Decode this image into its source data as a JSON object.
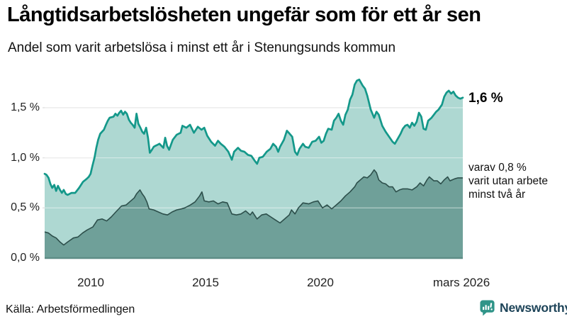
{
  "header": {
    "title": "Långtidsarbetslösheten ungefär som för ett år sen",
    "subtitle": "Andel som varit arbetslösa i minst ett år i Stenungsunds kommun"
  },
  "annotations": {
    "total_label": "1,6 %",
    "subset_line1": "varav 0,8 %",
    "subset_line2": "varit utan arbete",
    "subset_line3": "minst två år"
  },
  "footer": {
    "source": "Källa: Arbetsförmedlingen",
    "brand": "Newsworthy",
    "brand_logo_icon": "speech-bubble-bar-chart-icon"
  },
  "colors": {
    "line_total": "#14988a",
    "fill_total": "#aed8d2",
    "line_subset": "#2d4f4b",
    "fill_subset": "#6fa099",
    "baseline": "#5e8d87",
    "gridline": "#dfdfdf",
    "brand_teal": "#2f9488",
    "brand_navy": "#1e4459"
  },
  "chart_data": {
    "type": "area",
    "title": "Långtidsarbetslösheten ungefär som för ett år sen",
    "subtitle": "Andel som varit arbetslösa i minst ett år i Stenungsunds kommun",
    "xlabel": "",
    "ylabel": "",
    "xlim": [
      2008.0,
      2026.21
    ],
    "ylim": [
      0,
      1.8
    ],
    "grid": true,
    "legend_position": "none",
    "x_ticks": [
      {
        "label": "2010",
        "value": 2010
      },
      {
        "label": "2015",
        "value": 2015
      },
      {
        "label": "2020",
        "value": 2020
      },
      {
        "label": "mars 2026",
        "value": 2026.21
      }
    ],
    "y_ticks": [
      {
        "label": "0,0 %",
        "value": 0
      },
      {
        "label": "0,5 %",
        "value": 0.5
      },
      {
        "label": "1,0 %",
        "value": 1.0
      },
      {
        "label": "1,5 %",
        "value": 1.5
      }
    ],
    "series": [
      {
        "name": "Arbetslösa minst ett år",
        "latest_label": "1,6 %",
        "latest_value": 1.6,
        "color": "#14988a",
        "fill": "#aed8d2",
        "points": [
          [
            2008.0,
            0.84
          ],
          [
            2008.08,
            0.83
          ],
          [
            2008.17,
            0.8
          ],
          [
            2008.25,
            0.74
          ],
          [
            2008.33,
            0.7
          ],
          [
            2008.42,
            0.73
          ],
          [
            2008.5,
            0.67
          ],
          [
            2008.58,
            0.72
          ],
          [
            2008.67,
            0.68
          ],
          [
            2008.75,
            0.65
          ],
          [
            2008.83,
            0.68
          ],
          [
            2008.92,
            0.64
          ],
          [
            2009.0,
            0.63
          ],
          [
            2009.17,
            0.65
          ],
          [
            2009.33,
            0.65
          ],
          [
            2009.5,
            0.7
          ],
          [
            2009.67,
            0.76
          ],
          [
            2009.83,
            0.79
          ],
          [
            2009.92,
            0.81
          ],
          [
            2010.0,
            0.84
          ],
          [
            2010.08,
            0.92
          ],
          [
            2010.17,
            1.0
          ],
          [
            2010.25,
            1.1
          ],
          [
            2010.33,
            1.18
          ],
          [
            2010.42,
            1.24
          ],
          [
            2010.5,
            1.26
          ],
          [
            2010.58,
            1.28
          ],
          [
            2010.67,
            1.33
          ],
          [
            2010.75,
            1.37
          ],
          [
            2010.83,
            1.4
          ],
          [
            2011.0,
            1.41
          ],
          [
            2011.08,
            1.44
          ],
          [
            2011.17,
            1.42
          ],
          [
            2011.25,
            1.45
          ],
          [
            2011.33,
            1.47
          ],
          [
            2011.42,
            1.43
          ],
          [
            2011.5,
            1.46
          ],
          [
            2011.58,
            1.44
          ],
          [
            2011.67,
            1.38
          ],
          [
            2011.75,
            1.35
          ],
          [
            2011.83,
            1.33
          ],
          [
            2011.92,
            1.3
          ],
          [
            2012.0,
            1.44
          ],
          [
            2012.08,
            1.34
          ],
          [
            2012.17,
            1.3
          ],
          [
            2012.25,
            1.26
          ],
          [
            2012.33,
            1.24
          ],
          [
            2012.42,
            1.3
          ],
          [
            2012.5,
            1.2
          ],
          [
            2012.58,
            1.05
          ],
          [
            2012.67,
            1.08
          ],
          [
            2012.75,
            1.11
          ],
          [
            2012.83,
            1.12
          ],
          [
            2012.92,
            1.13
          ],
          [
            2013.0,
            1.14
          ],
          [
            2013.08,
            1.12
          ],
          [
            2013.17,
            1.1
          ],
          [
            2013.25,
            1.2
          ],
          [
            2013.33,
            1.12
          ],
          [
            2013.42,
            1.08
          ],
          [
            2013.58,
            1.18
          ],
          [
            2013.75,
            1.23
          ],
          [
            2013.92,
            1.25
          ],
          [
            2014.0,
            1.32
          ],
          [
            2014.17,
            1.3
          ],
          [
            2014.33,
            1.33
          ],
          [
            2014.5,
            1.25
          ],
          [
            2014.67,
            1.31
          ],
          [
            2014.83,
            1.28
          ],
          [
            2014.95,
            1.3
          ],
          [
            2015.08,
            1.22
          ],
          [
            2015.25,
            1.16
          ],
          [
            2015.42,
            1.12
          ],
          [
            2015.55,
            1.17
          ],
          [
            2015.67,
            1.14
          ],
          [
            2015.83,
            1.11
          ],
          [
            2016.0,
            1.06
          ],
          [
            2016.15,
            0.98
          ],
          [
            2016.25,
            1.06
          ],
          [
            2016.42,
            1.1
          ],
          [
            2016.55,
            1.07
          ],
          [
            2016.7,
            1.06
          ],
          [
            2016.85,
            1.03
          ],
          [
            2017.0,
            1.02
          ],
          [
            2017.15,
            0.97
          ],
          [
            2017.25,
            0.94
          ],
          [
            2017.35,
            1.0
          ],
          [
            2017.5,
            1.01
          ],
          [
            2017.67,
            1.06
          ],
          [
            2017.83,
            1.09
          ],
          [
            2017.95,
            1.14
          ],
          [
            2018.08,
            1.11
          ],
          [
            2018.17,
            1.06
          ],
          [
            2018.25,
            1.11
          ],
          [
            2018.42,
            1.18
          ],
          [
            2018.55,
            1.27
          ],
          [
            2018.67,
            1.24
          ],
          [
            2018.78,
            1.21
          ],
          [
            2018.9,
            1.06
          ],
          [
            2019.0,
            1.03
          ],
          [
            2019.1,
            1.09
          ],
          [
            2019.25,
            1.14
          ],
          [
            2019.35,
            1.11
          ],
          [
            2019.5,
            1.1
          ],
          [
            2019.65,
            1.16
          ],
          [
            2019.8,
            1.17
          ],
          [
            2019.95,
            1.21
          ],
          [
            2020.05,
            1.15
          ],
          [
            2020.15,
            1.17
          ],
          [
            2020.25,
            1.24
          ],
          [
            2020.35,
            1.29
          ],
          [
            2020.5,
            1.28
          ],
          [
            2020.6,
            1.37
          ],
          [
            2020.7,
            1.4
          ],
          [
            2020.8,
            1.44
          ],
          [
            2020.9,
            1.37
          ],
          [
            2021.0,
            1.33
          ],
          [
            2021.1,
            1.43
          ],
          [
            2021.2,
            1.48
          ],
          [
            2021.3,
            1.58
          ],
          [
            2021.4,
            1.63
          ],
          [
            2021.5,
            1.73
          ],
          [
            2021.6,
            1.77
          ],
          [
            2021.7,
            1.78
          ],
          [
            2021.85,
            1.72
          ],
          [
            2021.95,
            1.69
          ],
          [
            2022.05,
            1.62
          ],
          [
            2022.2,
            1.48
          ],
          [
            2022.35,
            1.4
          ],
          [
            2022.45,
            1.46
          ],
          [
            2022.55,
            1.43
          ],
          [
            2022.7,
            1.32
          ],
          [
            2022.85,
            1.26
          ],
          [
            2023.0,
            1.21
          ],
          [
            2023.15,
            1.16
          ],
          [
            2023.25,
            1.14
          ],
          [
            2023.4,
            1.2
          ],
          [
            2023.5,
            1.24
          ],
          [
            2023.6,
            1.29
          ],
          [
            2023.7,
            1.32
          ],
          [
            2023.8,
            1.33
          ],
          [
            2023.9,
            1.3
          ],
          [
            2024.0,
            1.35
          ],
          [
            2024.1,
            1.32
          ],
          [
            2024.2,
            1.36
          ],
          [
            2024.3,
            1.45
          ],
          [
            2024.4,
            1.41
          ],
          [
            2024.5,
            1.29
          ],
          [
            2024.6,
            1.28
          ],
          [
            2024.7,
            1.37
          ],
          [
            2024.85,
            1.4
          ],
          [
            2024.95,
            1.43
          ],
          [
            2025.05,
            1.46
          ],
          [
            2025.15,
            1.48
          ],
          [
            2025.3,
            1.53
          ],
          [
            2025.4,
            1.61
          ],
          [
            2025.5,
            1.65
          ],
          [
            2025.6,
            1.67
          ],
          [
            2025.7,
            1.64
          ],
          [
            2025.8,
            1.66
          ],
          [
            2025.9,
            1.62
          ],
          [
            2026.0,
            1.6
          ],
          [
            2026.1,
            1.59
          ],
          [
            2026.21,
            1.6
          ]
        ]
      },
      {
        "name": "Utan arbete minst två år",
        "latest_label": "0,8 %",
        "latest_value": 0.8,
        "color": "#2d4f4b",
        "fill": "#6fa099",
        "points": [
          [
            2008.0,
            0.26
          ],
          [
            2008.17,
            0.25
          ],
          [
            2008.33,
            0.22
          ],
          [
            2008.5,
            0.2
          ],
          [
            2008.67,
            0.16
          ],
          [
            2008.83,
            0.13
          ],
          [
            2009.0,
            0.16
          ],
          [
            2009.25,
            0.2
          ],
          [
            2009.45,
            0.21
          ],
          [
            2009.65,
            0.25
          ],
          [
            2009.85,
            0.28
          ],
          [
            2010.1,
            0.31
          ],
          [
            2010.3,
            0.38
          ],
          [
            2010.5,
            0.39
          ],
          [
            2010.7,
            0.37
          ],
          [
            2010.9,
            0.41
          ],
          [
            2011.1,
            0.46
          ],
          [
            2011.35,
            0.52
          ],
          [
            2011.55,
            0.53
          ],
          [
            2011.7,
            0.56
          ],
          [
            2011.9,
            0.6
          ],
          [
            2012.0,
            0.64
          ],
          [
            2012.15,
            0.68
          ],
          [
            2012.25,
            0.64
          ],
          [
            2012.35,
            0.61
          ],
          [
            2012.45,
            0.56
          ],
          [
            2012.55,
            0.49
          ],
          [
            2012.75,
            0.48
          ],
          [
            2012.95,
            0.46
          ],
          [
            2013.15,
            0.44
          ],
          [
            2013.35,
            0.43
          ],
          [
            2013.55,
            0.46
          ],
          [
            2013.75,
            0.48
          ],
          [
            2013.95,
            0.49
          ],
          [
            2014.1,
            0.5
          ],
          [
            2014.35,
            0.53
          ],
          [
            2014.55,
            0.56
          ],
          [
            2014.75,
            0.62
          ],
          [
            2014.85,
            0.66
          ],
          [
            2014.95,
            0.57
          ],
          [
            2015.15,
            0.56
          ],
          [
            2015.35,
            0.57
          ],
          [
            2015.55,
            0.54
          ],
          [
            2015.75,
            0.56
          ],
          [
            2015.95,
            0.55
          ],
          [
            2016.15,
            0.44
          ],
          [
            2016.35,
            0.43
          ],
          [
            2016.55,
            0.44
          ],
          [
            2016.75,
            0.47
          ],
          [
            2016.95,
            0.43
          ],
          [
            2017.05,
            0.46
          ],
          [
            2017.25,
            0.39
          ],
          [
            2017.45,
            0.43
          ],
          [
            2017.65,
            0.44
          ],
          [
            2017.85,
            0.41
          ],
          [
            2018.05,
            0.38
          ],
          [
            2018.25,
            0.35
          ],
          [
            2018.45,
            0.39
          ],
          [
            2018.65,
            0.43
          ],
          [
            2018.75,
            0.48
          ],
          [
            2018.9,
            0.44
          ],
          [
            2019.05,
            0.5
          ],
          [
            2019.25,
            0.55
          ],
          [
            2019.5,
            0.54
          ],
          [
            2019.7,
            0.56
          ],
          [
            2019.9,
            0.57
          ],
          [
            2020.1,
            0.5
          ],
          [
            2020.3,
            0.53
          ],
          [
            2020.5,
            0.49
          ],
          [
            2020.7,
            0.53
          ],
          [
            2020.9,
            0.57
          ],
          [
            2021.1,
            0.62
          ],
          [
            2021.3,
            0.66
          ],
          [
            2021.5,
            0.71
          ],
          [
            2021.6,
            0.75
          ],
          [
            2021.75,
            0.78
          ],
          [
            2021.9,
            0.81
          ],
          [
            2022.05,
            0.8
          ],
          [
            2022.2,
            0.83
          ],
          [
            2022.35,
            0.88
          ],
          [
            2022.45,
            0.85
          ],
          [
            2022.55,
            0.78
          ],
          [
            2022.7,
            0.75
          ],
          [
            2022.85,
            0.74
          ],
          [
            2023.0,
            0.71
          ],
          [
            2023.15,
            0.71
          ],
          [
            2023.3,
            0.66
          ],
          [
            2023.45,
            0.68
          ],
          [
            2023.6,
            0.69
          ],
          [
            2023.8,
            0.69
          ],
          [
            2024.0,
            0.68
          ],
          [
            2024.2,
            0.71
          ],
          [
            2024.35,
            0.75
          ],
          [
            2024.5,
            0.72
          ],
          [
            2024.65,
            0.78
          ],
          [
            2024.75,
            0.81
          ],
          [
            2024.95,
            0.77
          ],
          [
            2025.1,
            0.77
          ],
          [
            2025.25,
            0.74
          ],
          [
            2025.4,
            0.78
          ],
          [
            2025.55,
            0.81
          ],
          [
            2025.65,
            0.77
          ],
          [
            2025.85,
            0.79
          ],
          [
            2026.0,
            0.8
          ],
          [
            2026.21,
            0.8
          ]
        ]
      }
    ]
  }
}
